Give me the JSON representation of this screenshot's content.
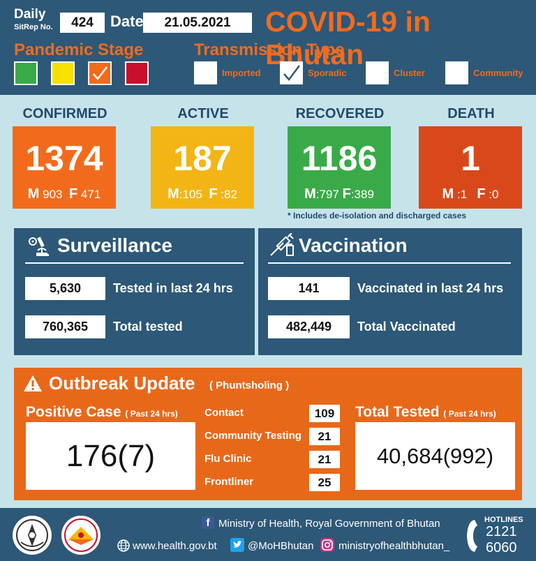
{
  "header": {
    "daily_label": "Daily",
    "sitrep_label": "SitRep No.",
    "sitrep_no": "424",
    "date_label": "Date",
    "date": "21.05.2021",
    "title": "COVID-19 in Bhutan",
    "pandemic_stage_label": "Pandemic Stage",
    "stage_colors": [
      "#3aaa48",
      "#f6e100",
      "#f26b1d",
      "#c8102e"
    ],
    "stage_selected_index": 2,
    "transmission_label": "Transmission Type",
    "transmission_types": [
      "Imported",
      "Sporadic",
      "Cluster",
      "Community"
    ],
    "transmission_selected_index": 1
  },
  "stats": {
    "confirmed": {
      "title": "CONFIRMED",
      "total": "1374",
      "m_label": "M",
      "m": "903",
      "f_label": "F",
      "f": "471",
      "color": "#f26b1d"
    },
    "active": {
      "title": "ACTIVE",
      "total": "187",
      "m_label": "M",
      "m": ":105",
      "f_label": "F",
      "f": ":82",
      "color": "#f3b515"
    },
    "recovered": {
      "title": "RECOVERED",
      "total": "1186",
      "m_label": "M",
      "m": ":797",
      "f_label": "F",
      "f": ":389",
      "color": "#3aaa48"
    },
    "death": {
      "title": "DEATH",
      "total": "1",
      "m_label": "M",
      "m": ":1",
      "f_label": "F",
      "f": ":0",
      "color": "#d9481a"
    },
    "note": "* Includes de-isolation and discharged cases"
  },
  "surveillance": {
    "title": "Surveillance",
    "tested_24h": "5,630",
    "tested_24h_label": "Tested in last 24 hrs",
    "total_tested": "760,365",
    "total_tested_label": "Total tested"
  },
  "vaccination": {
    "title": "Vaccination",
    "vaccinated_24h": "141",
    "vaccinated_24h_label": "Vaccinated in last 24 hrs",
    "total_vaccinated": "482,449",
    "total_vaccinated_label": "Total Vaccinated"
  },
  "outbreak": {
    "title": "Outbreak Update",
    "location": "( Phuntsholing )",
    "positive_label": "Positive Case",
    "positive_sub": "( Past 24 hrs)",
    "positive_value": "176(7)",
    "rows": [
      {
        "label": "Contact",
        "value": "109"
      },
      {
        "label": "Community Testing",
        "value": "21"
      },
      {
        "label": "Flu Clinic",
        "value": "21"
      },
      {
        "label": "Frontliner",
        "value": "25"
      }
    ],
    "tested_label": "Total Tested",
    "tested_sub": "( Past 24 hrs)",
    "tested_value": "40,684(992)"
  },
  "footer": {
    "ministry": "Ministry of Health, Royal Government of Bhutan",
    "website": "www.health.gov.bt",
    "twitter": "@MoHBhutan",
    "instagram": "ministryofhealthbhutan_",
    "hotlines_label": "HOTLINES",
    "hotline_1": "2121",
    "hotline_2": "6060"
  }
}
